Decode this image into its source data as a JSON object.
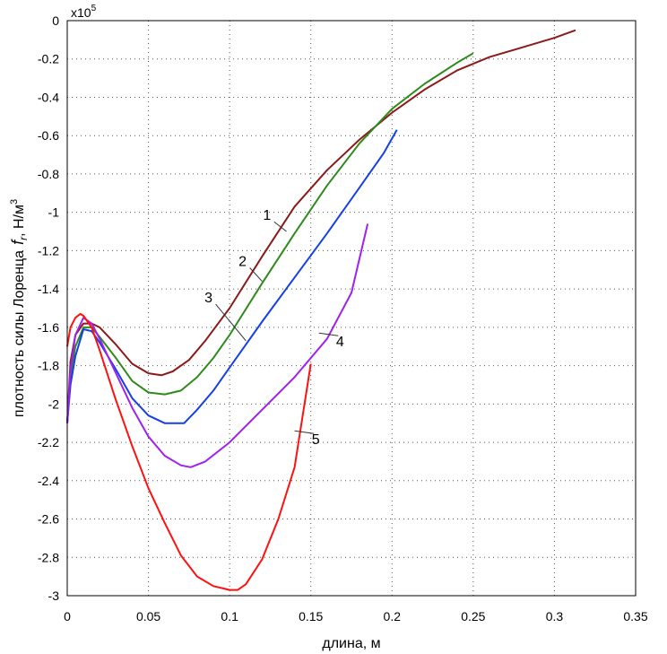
{
  "chart_data": {
    "type": "line",
    "xlabel": "длина, м",
    "ylabel": "плотность силы Лоренца",
    "ylabel_symbol": "f",
    "ylabel_subscript": "r",
    "ylabel_units": ",  Н/м",
    "ylabel_units_sup": "3",
    "y_exponent_base": "x10",
    "y_exponent_power": "5",
    "xlim": [
      0,
      0.35
    ],
    "ylim": [
      -3,
      0
    ],
    "x_ticks": [
      0,
      0.05,
      0.1,
      0.15,
      0.2,
      0.25,
      0.3,
      0.35
    ],
    "x_tick_labels": [
      "0",
      "0.05",
      "0.1",
      "0.15",
      "0.2",
      "0.25",
      "0.3",
      "0.35"
    ],
    "y_ticks": [
      0,
      -0.2,
      -0.4,
      -0.6,
      -0.8,
      -1,
      -1.2,
      -1.4,
      -1.6,
      -1.8,
      -2,
      -2.2,
      -2.4,
      -2.6,
      -2.8,
      -3
    ],
    "y_tick_labels": [
      "0",
      "-0.2",
      "-0.4",
      "-0.6",
      "-0.8",
      "-1",
      "-1.2",
      "-1.4",
      "-1.6",
      "-1.8",
      "-2",
      "-2.2",
      "-2.4",
      "-2.6",
      "-2.8",
      "-3"
    ],
    "grid": true,
    "series": [
      {
        "name": "1",
        "color": "#8b1a1a",
        "label_at": [
          0.123,
          -1.04
        ],
        "pointer_to": [
          0.135,
          -1.1
        ],
        "points": [
          [
            0,
            -2.1
          ],
          [
            0.002,
            -1.78
          ],
          [
            0.005,
            -1.64
          ],
          [
            0.01,
            -1.58
          ],
          [
            0.015,
            -1.58
          ],
          [
            0.02,
            -1.6
          ],
          [
            0.03,
            -1.69
          ],
          [
            0.04,
            -1.79
          ],
          [
            0.05,
            -1.84
          ],
          [
            0.058,
            -1.85
          ],
          [
            0.065,
            -1.83
          ],
          [
            0.075,
            -1.77
          ],
          [
            0.085,
            -1.67
          ],
          [
            0.1,
            -1.5
          ],
          [
            0.12,
            -1.23
          ],
          [
            0.14,
            -0.97
          ],
          [
            0.16,
            -0.78
          ],
          [
            0.18,
            -0.62
          ],
          [
            0.2,
            -0.48
          ],
          [
            0.22,
            -0.36
          ],
          [
            0.24,
            -0.26
          ],
          [
            0.26,
            -0.19
          ],
          [
            0.28,
            -0.14
          ],
          [
            0.3,
            -0.09
          ],
          [
            0.313,
            -0.05
          ]
        ]
      },
      {
        "name": "2",
        "color": "#2e8b1a",
        "label_at": [
          0.108,
          -1.28
        ],
        "pointer_to": [
          0.12,
          -1.36
        ],
        "points": [
          [
            0,
            -2.1
          ],
          [
            0.002,
            -1.85
          ],
          [
            0.005,
            -1.7
          ],
          [
            0.01,
            -1.6
          ],
          [
            0.015,
            -1.6
          ],
          [
            0.02,
            -1.65
          ],
          [
            0.03,
            -1.76
          ],
          [
            0.04,
            -1.88
          ],
          [
            0.05,
            -1.94
          ],
          [
            0.06,
            -1.95
          ],
          [
            0.07,
            -1.93
          ],
          [
            0.08,
            -1.86
          ],
          [
            0.09,
            -1.76
          ],
          [
            0.1,
            -1.64
          ],
          [
            0.12,
            -1.37
          ],
          [
            0.14,
            -1.11
          ],
          [
            0.16,
            -0.86
          ],
          [
            0.18,
            -0.64
          ],
          [
            0.2,
            -0.46
          ],
          [
            0.22,
            -0.33
          ],
          [
            0.24,
            -0.22
          ],
          [
            0.25,
            -0.17
          ]
        ]
      },
      {
        "name": "3",
        "color": "#1440e6",
        "label_at": [
          0.087,
          -1.47
        ],
        "pointer_to": [
          0.11,
          -1.67
        ],
        "points": [
          [
            0,
            -2.1
          ],
          [
            0.002,
            -1.9
          ],
          [
            0.005,
            -1.75
          ],
          [
            0.01,
            -1.61
          ],
          [
            0.015,
            -1.62
          ],
          [
            0.02,
            -1.68
          ],
          [
            0.03,
            -1.82
          ],
          [
            0.04,
            -1.97
          ],
          [
            0.05,
            -2.06
          ],
          [
            0.06,
            -2.1
          ],
          [
            0.072,
            -2.1
          ],
          [
            0.08,
            -2.03
          ],
          [
            0.09,
            -1.93
          ],
          [
            0.1,
            -1.81
          ],
          [
            0.12,
            -1.57
          ],
          [
            0.14,
            -1.34
          ],
          [
            0.16,
            -1.11
          ],
          [
            0.18,
            -0.87
          ],
          [
            0.195,
            -0.69
          ],
          [
            0.203,
            -0.57
          ]
        ]
      },
      {
        "name": "4",
        "color": "#a020f0",
        "label_at": [
          0.168,
          -1.7
        ],
        "pointer_to": [
          0.155,
          -1.63
        ],
        "points": [
          [
            0,
            -2.1
          ],
          [
            0.002,
            -1.82
          ],
          [
            0.005,
            -1.64
          ],
          [
            0.01,
            -1.55
          ],
          [
            0.015,
            -1.58
          ],
          [
            0.02,
            -1.66
          ],
          [
            0.03,
            -1.84
          ],
          [
            0.04,
            -2.02
          ],
          [
            0.05,
            -2.17
          ],
          [
            0.06,
            -2.27
          ],
          [
            0.07,
            -2.32
          ],
          [
            0.076,
            -2.33
          ],
          [
            0.085,
            -2.3
          ],
          [
            0.1,
            -2.2
          ],
          [
            0.12,
            -2.03
          ],
          [
            0.14,
            -1.86
          ],
          [
            0.16,
            -1.66
          ],
          [
            0.175,
            -1.42
          ],
          [
            0.185,
            -1.06
          ]
        ]
      },
      {
        "name": "5",
        "color": "#ff1010",
        "label_at": [
          0.153,
          -2.21
        ],
        "pointer_to": [
          0.14,
          -2.14
        ],
        "points": [
          [
            0,
            -1.7
          ],
          [
            0.002,
            -1.6
          ],
          [
            0.005,
            -1.55
          ],
          [
            0.008,
            -1.53
          ],
          [
            0.01,
            -1.54
          ],
          [
            0.015,
            -1.6
          ],
          [
            0.02,
            -1.72
          ],
          [
            0.03,
            -1.98
          ],
          [
            0.04,
            -2.22
          ],
          [
            0.05,
            -2.44
          ],
          [
            0.06,
            -2.62
          ],
          [
            0.07,
            -2.79
          ],
          [
            0.08,
            -2.9
          ],
          [
            0.09,
            -2.95
          ],
          [
            0.1,
            -2.97
          ],
          [
            0.105,
            -2.97
          ],
          [
            0.11,
            -2.94
          ],
          [
            0.12,
            -2.81
          ],
          [
            0.13,
            -2.6
          ],
          [
            0.14,
            -2.33
          ],
          [
            0.15,
            -1.79
          ]
        ]
      }
    ]
  }
}
